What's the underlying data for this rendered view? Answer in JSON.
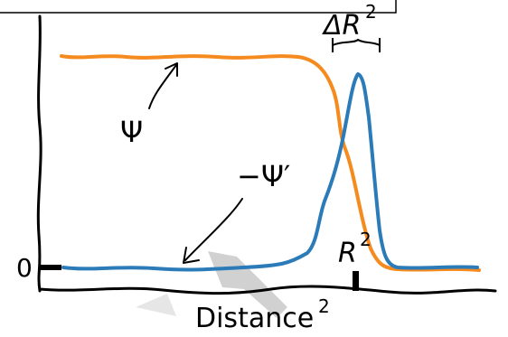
{
  "labels": {
    "psi": "Ψ",
    "minus_psi_prime": "−Ψ′",
    "zero": "0",
    "r_base": "R",
    "r_exp": "2",
    "delta_r_base": "ΔR",
    "delta_r_exp": "2",
    "x_axis_base": "Distance",
    "x_axis_exp": "2"
  },
  "colors": {
    "psi_curve": "#f58a1f",
    "psi_prime_curve": "#2b7bb9",
    "ink": "#000000",
    "watermark": "#9a9a9a"
  }
}
